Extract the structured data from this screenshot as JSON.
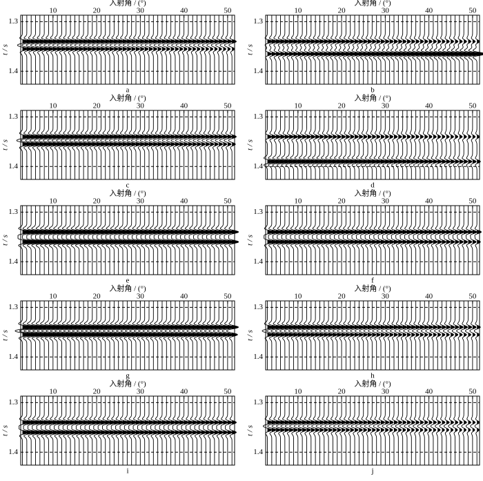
{
  "chart_data": [
    {
      "type": "wiggle",
      "title": "入射角 / (°)",
      "ylabel": "t / s",
      "label": "a",
      "xlim": [
        2.6,
        51.6
      ],
      "xticks": [
        10,
        20,
        30,
        40,
        50
      ],
      "ylim": [
        1.287,
        1.426
      ],
      "yticks": [
        1.3,
        1.4
      ],
      "grid": true,
      "x": [
        3,
        4,
        5,
        6,
        7,
        8,
        9,
        10,
        11,
        12,
        13,
        14,
        15,
        16,
        17,
        18,
        19,
        20,
        21,
        22,
        23,
        24,
        25,
        26,
        27,
        28,
        29,
        30,
        31,
        32,
        33,
        34,
        35,
        36,
        37,
        38,
        39,
        40,
        41,
        42,
        43,
        44,
        45,
        46,
        47,
        48,
        49,
        50,
        51
      ],
      "events": [
        {
          "time": 1.34,
          "amplitude": [
            1.4,
            1.0
          ]
        },
        {
          "time": 1.355,
          "amplitude": [
            1.2,
            0.6
          ]
        }
      ]
    },
    {
      "type": "wiggle",
      "title": "入射角 / (°)",
      "ylabel": "t / s",
      "label": "b",
      "xlim": [
        2.6,
        51.6
      ],
      "xticks": [
        10,
        20,
        30,
        40,
        50
      ],
      "ylim": [
        1.287,
        1.426
      ],
      "yticks": [
        1.3,
        1.4
      ],
      "grid": true,
      "x": [
        3,
        4,
        5,
        6,
        7,
        8,
        9,
        10,
        11,
        12,
        13,
        14,
        15,
        16,
        17,
        18,
        19,
        20,
        21,
        22,
        23,
        24,
        25,
        26,
        27,
        28,
        29,
        30,
        31,
        32,
        33,
        34,
        35,
        36,
        37,
        38,
        39,
        40,
        41,
        42,
        43,
        44,
        45,
        46,
        47,
        48,
        49,
        50,
        51
      ],
      "events": [
        {
          "time": 1.34,
          "amplitude": [
            1.2,
            0.6
          ]
        },
        {
          "time": 1.365,
          "amplitude": [
            1.0,
            2.0
          ]
        }
      ]
    },
    {
      "type": "wiggle",
      "title": "入射角 / (°)",
      "ylabel": "t / s",
      "label": "c",
      "xlim": [
        2.6,
        51.6
      ],
      "xticks": [
        10,
        20,
        30,
        40,
        50
      ],
      "ylim": [
        1.287,
        1.426
      ],
      "yticks": [
        1.3,
        1.4
      ],
      "grid": true,
      "x": [
        3,
        4,
        5,
        6,
        7,
        8,
        9,
        10,
        11,
        12,
        13,
        14,
        15,
        16,
        17,
        18,
        19,
        20,
        21,
        22,
        23,
        24,
        25,
        26,
        27,
        28,
        29,
        30,
        31,
        32,
        33,
        34,
        35,
        36,
        37,
        38,
        39,
        40,
        41,
        42,
        43,
        44,
        45,
        46,
        47,
        48,
        49,
        50,
        51
      ],
      "events": [
        {
          "time": 1.34,
          "amplitude": [
            1.5,
            1.0
          ]
        },
        {
          "time": 1.355,
          "amplitude": [
            1.5,
            0.8
          ]
        }
      ]
    },
    {
      "type": "wiggle",
      "title": "入射角 / (°)",
      "ylabel": "t / s",
      "label": "d",
      "xlim": [
        2.6,
        51.6
      ],
      "xticks": [
        10,
        20,
        30,
        40,
        50
      ],
      "ylim": [
        1.287,
        1.426
      ],
      "yticks": [
        1.3,
        1.4
      ],
      "grid": true,
      "x": [
        3,
        4,
        5,
        6,
        7,
        8,
        9,
        10,
        11,
        12,
        13,
        14,
        15,
        16,
        17,
        18,
        19,
        20,
        21,
        22,
        23,
        24,
        25,
        26,
        27,
        28,
        29,
        30,
        31,
        32,
        33,
        34,
        35,
        36,
        37,
        38,
        39,
        40,
        41,
        42,
        43,
        44,
        45,
        46,
        47,
        48,
        49,
        50,
        51
      ],
      "events": [
        {
          "time": 1.34,
          "amplitude": [
            1.0,
            0.6
          ]
        },
        {
          "time": 1.39,
          "amplitude": [
            1.8,
            0.8
          ]
        }
      ]
    },
    {
      "type": "wiggle",
      "title": "入射角 / (°)",
      "ylabel": "t / s",
      "label": "e",
      "xlim": [
        2.6,
        51.6
      ],
      "xticks": [
        10,
        20,
        30,
        40,
        50
      ],
      "ylim": [
        1.287,
        1.426
      ],
      "yticks": [
        1.3,
        1.4
      ],
      "grid": true,
      "x": [
        3,
        4,
        5,
        6,
        7,
        8,
        9,
        10,
        11,
        12,
        13,
        14,
        15,
        16,
        17,
        18,
        19,
        20,
        21,
        22,
        23,
        24,
        25,
        26,
        27,
        28,
        29,
        30,
        31,
        32,
        33,
        34,
        35,
        36,
        37,
        38,
        39,
        40,
        41,
        42,
        43,
        44,
        45,
        46,
        47,
        48,
        49,
        50,
        51
      ],
      "events": [
        {
          "time": 1.34,
          "amplitude": [
            2.0,
            1.5
          ]
        },
        {
          "time": 1.36,
          "amplitude": [
            2.0,
            1.5
          ]
        }
      ]
    },
    {
      "type": "wiggle",
      "title": "入射角 / (°)",
      "ylabel": "t / s",
      "label": "f",
      "xlim": [
        2.6,
        51.6
      ],
      "xticks": [
        10,
        20,
        30,
        40,
        50
      ],
      "ylim": [
        1.287,
        1.426
      ],
      "yticks": [
        1.3,
        1.4
      ],
      "grid": true,
      "x": [
        3,
        4,
        5,
        6,
        7,
        8,
        9,
        10,
        11,
        12,
        13,
        14,
        15,
        16,
        17,
        18,
        19,
        20,
        21,
        22,
        23,
        24,
        25,
        26,
        27,
        28,
        29,
        30,
        31,
        32,
        33,
        34,
        35,
        36,
        37,
        38,
        39,
        40,
        41,
        42,
        43,
        44,
        45,
        46,
        47,
        48,
        49,
        50,
        51
      ],
      "events": [
        {
          "time": 1.34,
          "amplitude": [
            1.5,
            1.0
          ]
        },
        {
          "time": 1.36,
          "amplitude": [
            1.5,
            0.8
          ]
        }
      ]
    },
    {
      "type": "wiggle",
      "title": "入射角 / (°)",
      "ylabel": "t / s",
      "label": "g",
      "xlim": [
        2.6,
        51.6
      ],
      "xticks": [
        10,
        20,
        30,
        40,
        50
      ],
      "ylim": [
        1.287,
        1.426
      ],
      "yticks": [
        1.3,
        1.4
      ],
      "grid": true,
      "x": [
        3,
        4,
        5,
        6,
        7,
        8,
        9,
        10,
        11,
        12,
        13,
        14,
        15,
        16,
        17,
        18,
        19,
        20,
        21,
        22,
        23,
        24,
        25,
        26,
        27,
        28,
        29,
        30,
        31,
        32,
        33,
        34,
        35,
        36,
        37,
        38,
        39,
        40,
        41,
        42,
        43,
        44,
        45,
        46,
        47,
        48,
        49,
        50,
        51
      ],
      "events": [
        {
          "time": 1.34,
          "amplitude": [
            2.0,
            1.5
          ]
        },
        {
          "time": 1.355,
          "amplitude": [
            1.8,
            1.3
          ]
        }
      ]
    },
    {
      "type": "wiggle",
      "title": "入射角 / (°)",
      "ylabel": "t / s",
      "label": "h",
      "xlim": [
        2.6,
        51.6
      ],
      "xticks": [
        10,
        20,
        30,
        40,
        50
      ],
      "ylim": [
        1.287,
        1.426
      ],
      "yticks": [
        1.3,
        1.4
      ],
      "grid": true,
      "x": [
        3,
        4,
        5,
        6,
        7,
        8,
        9,
        10,
        11,
        12,
        13,
        14,
        15,
        16,
        17,
        18,
        19,
        20,
        21,
        22,
        23,
        24,
        25,
        26,
        27,
        28,
        29,
        30,
        31,
        32,
        33,
        34,
        35,
        36,
        37,
        38,
        39,
        40,
        41,
        42,
        43,
        44,
        45,
        46,
        47,
        48,
        49,
        50,
        51
      ],
      "events": [
        {
          "time": 1.34,
          "amplitude": [
            1.5,
            0.8
          ]
        },
        {
          "time": 1.355,
          "amplitude": [
            1.2,
            0.6
          ]
        }
      ]
    },
    {
      "type": "wiggle",
      "title": "入射角 / (°)",
      "ylabel": "t / s",
      "label": "i",
      "xlim": [
        2.6,
        51.6
      ],
      "xticks": [
        10,
        20,
        30,
        40,
        50
      ],
      "ylim": [
        1.287,
        1.426
      ],
      "yticks": [
        1.3,
        1.4
      ],
      "grid": true,
      "x": [
        3,
        4,
        5,
        6,
        7,
        8,
        9,
        10,
        11,
        12,
        13,
        14,
        15,
        16,
        17,
        18,
        19,
        20,
        21,
        22,
        23,
        24,
        25,
        26,
        27,
        28,
        29,
        30,
        31,
        32,
        33,
        34,
        35,
        36,
        37,
        38,
        39,
        40,
        41,
        42,
        43,
        44,
        45,
        46,
        47,
        48,
        49,
        50,
        51
      ],
      "events": [
        {
          "time": 1.34,
          "amplitude": [
            1.5,
            1.0
          ]
        },
        {
          "time": 1.36,
          "amplitude": [
            1.5,
            1.0
          ]
        }
      ]
    },
    {
      "type": "wiggle",
      "title": "入射角 / (°)",
      "ylabel": "t / s",
      "label": "j",
      "xlim": [
        2.6,
        51.6
      ],
      "xticks": [
        10,
        20,
        30,
        40,
        50
      ],
      "ylim": [
        1.287,
        1.426
      ],
      "yticks": [
        1.3,
        1.4
      ],
      "grid": true,
      "x": [
        3,
        4,
        5,
        6,
        7,
        8,
        9,
        10,
        11,
        12,
        13,
        14,
        15,
        16,
        17,
        18,
        19,
        20,
        21,
        22,
        23,
        24,
        25,
        26,
        27,
        28,
        29,
        30,
        31,
        32,
        33,
        34,
        35,
        36,
        37,
        38,
        39,
        40,
        41,
        42,
        43,
        44,
        45,
        46,
        47,
        48,
        49,
        50,
        51
      ],
      "events": [
        {
          "time": 1.34,
          "amplitude": [
            1.2,
            0.6
          ]
        },
        {
          "time": 1.355,
          "amplitude": [
            1.0,
            0.5
          ]
        }
      ]
    }
  ]
}
